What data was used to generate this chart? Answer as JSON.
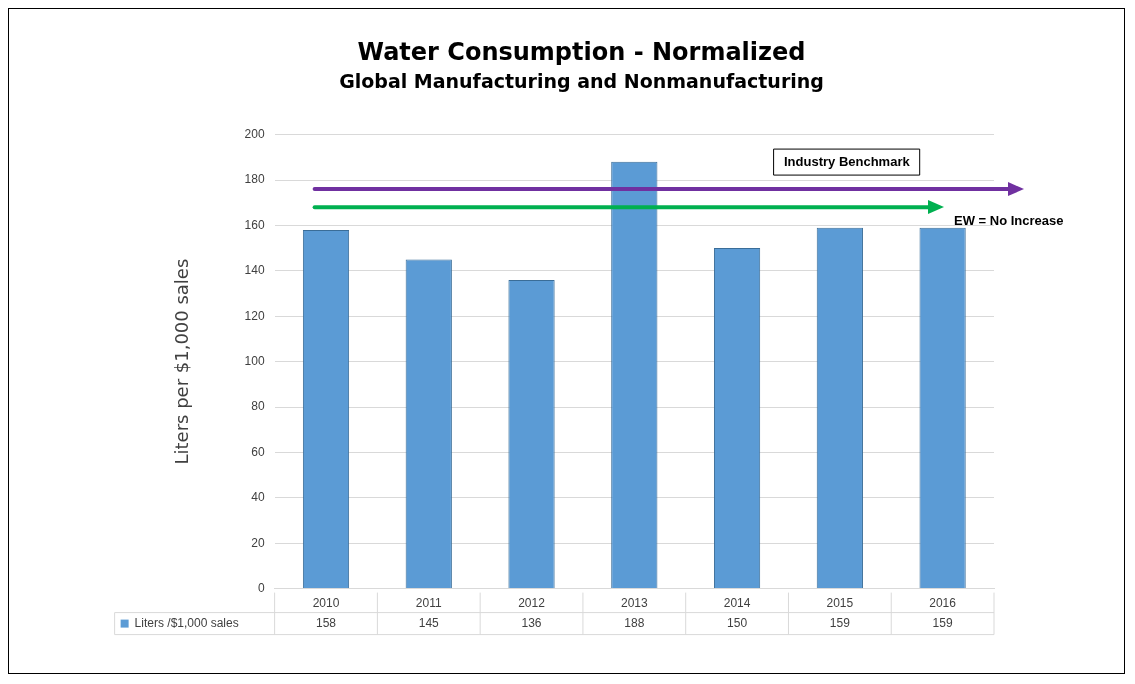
{
  "chart_data": {
    "type": "bar",
    "title": "Water Consumption - Normalized",
    "subtitle": "Global Manufacturing and Nonmanufacturing",
    "ylabel": "Liters per $1,000 sales",
    "categories": [
      "2010",
      "2011",
      "2012",
      "2013",
      "2014",
      "2015",
      "2016"
    ],
    "series": [
      {
        "name": "Liters /$1,000 sales",
        "color": "#5b9bd5",
        "values": [
          158,
          145,
          136,
          188,
          150,
          159,
          159
        ]
      }
    ],
    "ylim": [
      0,
      200
    ],
    "yticks": [
      0,
      20,
      40,
      60,
      80,
      100,
      120,
      140,
      160,
      180,
      200
    ],
    "grid": "y",
    "legend": "bottom",
    "data_labels": true,
    "ref_lines": [
      {
        "axis": "y",
        "value": 176,
        "label": "Industry Benchmark",
        "color": "#7030a0"
      },
      {
        "axis": "y",
        "value": 168,
        "label": "EW = No Increase",
        "color": "#00b050"
      }
    ]
  }
}
